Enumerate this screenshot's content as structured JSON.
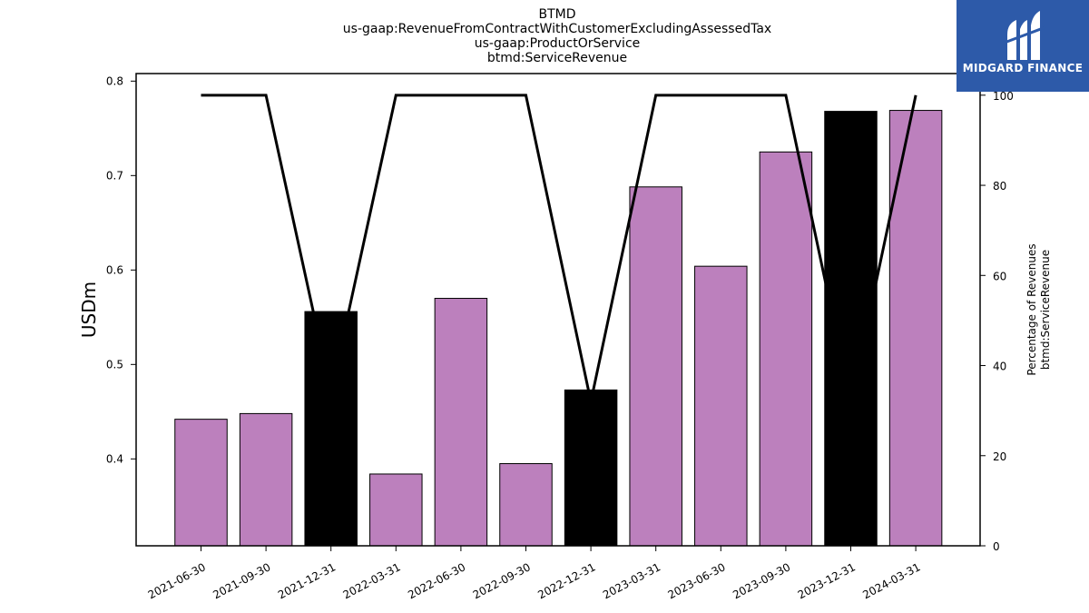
{
  "chart_data": {
    "type": "bar",
    "title_lines": [
      "BTMD",
      "us-gaap:RevenueFromContractWithCustomerExcludingAssessedTax",
      "us-gaap:ProductOrService",
      "btmd:ServiceRevenue"
    ],
    "categories": [
      "2021-06-30",
      "2021-09-30",
      "2021-12-31",
      "2022-03-31",
      "2022-06-30",
      "2022-09-30",
      "2022-12-31",
      "2023-03-31",
      "2023-06-30",
      "2023-09-30",
      "2023-12-31",
      "2024-03-31"
    ],
    "series": [
      {
        "values": [
          0.442,
          0.448,
          0.556,
          0.384,
          0.57,
          0.395,
          0.473,
          0.688,
          0.604,
          0.725,
          0.768,
          0.769
        ]
      },
      {
        "axis": "right",
        "values": [
          100,
          100,
          34,
          100,
          100,
          100,
          32,
          100,
          100,
          100,
          32,
          100
        ]
      }
    ],
    "bar_colors": [
      "#bc80bd",
      "#bc80bd",
      "#000000",
      "#bc80bd",
      "#bc80bd",
      "#bc80bd",
      "#000000",
      "#bc80bd",
      "#bc80bd",
      "#bc80bd",
      "#000000",
      "#bc80bd"
    ],
    "ylabel": "USDm",
    "y2label_lines": [
      "Percentage of Revenues",
      "btmd:ServiceRevenue"
    ],
    "ylim": [
      0.308,
      0.808
    ],
    "y_ticks": [
      "0.4",
      "0.5",
      "0.6",
      "0.7",
      "0.8"
    ],
    "y2lim": [
      0,
      104.8
    ],
    "y2_ticks": [
      "0",
      "20",
      "40",
      "60",
      "80",
      "100"
    ],
    "grid": false
  },
  "logo": {
    "text": "MIDGARD FINANCE",
    "background": "#2d5aa9"
  }
}
